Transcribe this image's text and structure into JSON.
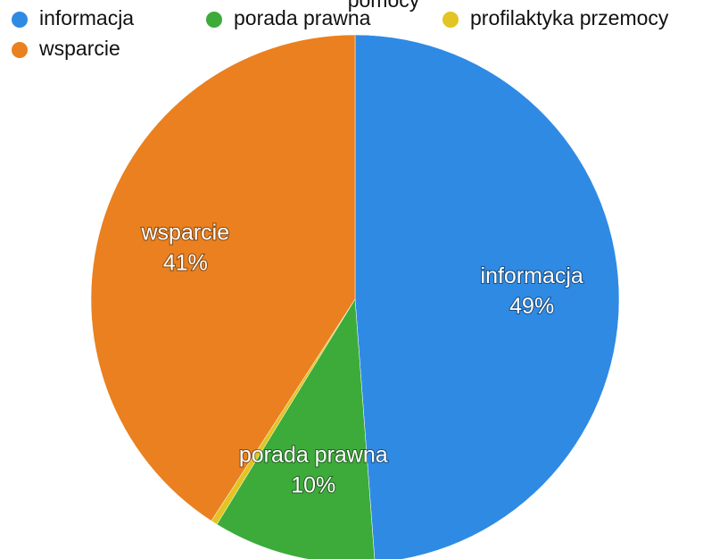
{
  "chart_data": {
    "type": "pie",
    "title": "pomocy",
    "categories": [
      "informacja",
      "porada prawna",
      "profilaktyka przemocy",
      "wsparcie"
    ],
    "values": [
      49,
      10,
      0.4,
      41
    ],
    "value_labels": [
      "49%",
      "10%",
      null,
      "41%"
    ],
    "colors": [
      "#2f8ae4",
      "#3cab3a",
      "#e2c424",
      "#ea801f"
    ],
    "legend": "top-left"
  }
}
